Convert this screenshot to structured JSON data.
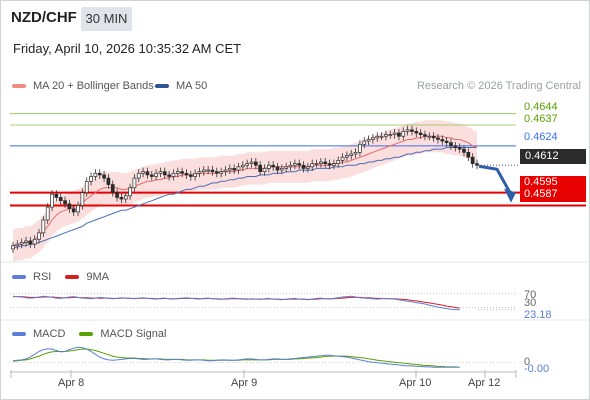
{
  "header": {
    "symbol": "NZD/CHF",
    "timeframe": "30 MIN",
    "datetime": "Friday, April 10, 2026 10:35:32 AM CET"
  },
  "legend": {
    "ma20": "MA 20 + Bollinger Bands",
    "ma50": "MA 50",
    "credit": "Research © 2026 Trading Central"
  },
  "levels": {
    "r2": "0.4644",
    "r1": "0.4637",
    "pivot": "0.4624",
    "last": "0.4612",
    "s1": "0.4595",
    "s2": "0.4587"
  },
  "rsi": {
    "label": "RSI",
    "ma_label": "9MA",
    "level_70": "70",
    "level_30": "30",
    "value": "23.18"
  },
  "macd": {
    "label": "MACD",
    "signal_label": "MACD Signal",
    "zero": "0",
    "value": "-0.00"
  },
  "xaxis": {
    "labels": [
      "Apr 8",
      "Apr 9",
      "Apr 10",
      "Apr 12"
    ]
  },
  "colors": {
    "up": "#1e1e1e",
    "down": "#555555",
    "ma20": "#e86a6a",
    "ma50": "#4a6fb5",
    "bands": "#f9d2d2",
    "resistance": "#7cb342",
    "pivot": "#3a6ee8",
    "support": "#e60000",
    "rsi": "#5b7fd6",
    "rsi_ma": "#d22020",
    "macd": "#5b7fd6",
    "macd_signal": "#5aa000"
  },
  "chart_data": {
    "type": "candlestick",
    "price_range": [
      0.4555,
      0.4655
    ],
    "rsi_range": [
      0,
      100
    ],
    "closes": [
      0.4562,
      0.4563,
      0.4564,
      0.4565,
      0.4563,
      0.4566,
      0.457,
      0.4578,
      0.4586,
      0.4594,
      0.4592,
      0.459,
      0.4588,
      0.4585,
      0.4583,
      0.4587,
      0.4595,
      0.4602,
      0.4605,
      0.4607,
      0.4606,
      0.4604,
      0.46,
      0.4595,
      0.4592,
      0.4591,
      0.4593,
      0.4598,
      0.4604,
      0.4607,
      0.4608,
      0.4606,
      0.4605,
      0.4607,
      0.4608,
      0.4606,
      0.4605,
      0.4607,
      0.4608,
      0.4607,
      0.4606,
      0.4605,
      0.4607,
      0.4608,
      0.4609,
      0.4609,
      0.4608,
      0.4607,
      0.4608,
      0.4609,
      0.461,
      0.4609,
      0.4611,
      0.4612,
      0.4613,
      0.4614,
      0.4612,
      0.4608,
      0.461,
      0.4612,
      0.4611,
      0.4609,
      0.461,
      0.4611,
      0.4612,
      0.4613,
      0.4612,
      0.461,
      0.4611,
      0.4613,
      0.4613,
      0.4614,
      0.4613,
      0.4612,
      0.4613,
      0.4615,
      0.4617,
      0.4618,
      0.4619,
      0.462,
      0.4625,
      0.4627,
      0.4628,
      0.4629,
      0.463,
      0.463,
      0.4631,
      0.4631,
      0.4632,
      0.463,
      0.4633,
      0.4634,
      0.4633,
      0.4632,
      0.4631,
      0.463,
      0.463,
      0.4629,
      0.4628,
      0.4627,
      0.4626,
      0.4624,
      0.4623,
      0.4622,
      0.462,
      0.4617,
      0.4613,
      0.4612
    ],
    "ma20": [
      0.4562,
      0.4563,
      0.4563,
      0.4564,
      0.4564,
      0.4566,
      0.4568,
      0.4571,
      0.4574,
      0.4578,
      0.4581,
      0.4583,
      0.4584,
      0.4585,
      0.4586,
      0.4587,
      0.4589,
      0.4591,
      0.4593,
      0.4595,
      0.4597,
      0.4598,
      0.4598,
      0.4598,
      0.4598,
      0.4597,
      0.4597,
      0.4598,
      0.4599,
      0.46,
      0.4601,
      0.4602,
      0.4602,
      0.4603,
      0.4603,
      0.4604,
      0.4604,
      0.4605,
      0.4605,
      0.4606,
      0.4606,
      0.4606,
      0.4606,
      0.4607,
      0.4607,
      0.4607,
      0.4607,
      0.4607,
      0.4608,
      0.4608,
      0.4608,
      0.4608,
      0.4609,
      0.4609,
      0.461,
      0.461,
      0.461,
      0.461,
      0.461,
      0.4611,
      0.4611,
      0.4611,
      0.4611,
      0.4611,
      0.4611,
      0.4611,
      0.4611,
      0.4611,
      0.4611,
      0.4612,
      0.4612,
      0.4612,
      0.4612,
      0.4612,
      0.4613,
      0.4613,
      0.4614,
      0.4614,
      0.4615,
      0.4616,
      0.4617,
      0.4618,
      0.4619,
      0.462,
      0.4621,
      0.4622,
      0.4623,
      0.4624,
      0.4625,
      0.4626,
      0.4627,
      0.4628,
      0.4628,
      0.4629,
      0.4629,
      0.463,
      0.463,
      0.463,
      0.463,
      0.463,
      0.4629,
      0.4629,
      0.4628,
      0.4628,
      0.4627,
      0.4626,
      0.4624,
      0.4623
    ],
    "ma50": [
      0.4561,
      0.4561,
      0.4562,
      0.4562,
      0.4563,
      0.4563,
      0.4564,
      0.4565,
      0.4566,
      0.4567,
      0.4568,
      0.4569,
      0.457,
      0.4571,
      0.4572,
      0.4573,
      0.4574,
      0.4576,
      0.4577,
      0.4578,
      0.4579,
      0.458,
      0.4581,
      0.4582,
      0.4583,
      0.4584,
      0.4584,
      0.4585,
      0.4586,
      0.4587,
      0.4588,
      0.4589,
      0.459,
      0.4591,
      0.4592,
      0.4593,
      0.4594,
      0.4594,
      0.4595,
      0.4596,
      0.4597,
      0.4597,
      0.4598,
      0.4599,
      0.4599,
      0.46,
      0.4601,
      0.4601,
      0.4602,
      0.4602,
      0.4603,
      0.4603,
      0.4604,
      0.4604,
      0.4605,
      0.4605,
      0.4605,
      0.4606,
      0.4606,
      0.4606,
      0.4607,
      0.4607,
      0.4607,
      0.4608,
      0.4608,
      0.4608,
      0.4609,
      0.4609,
      0.4609,
      0.4609,
      0.461,
      0.461,
      0.461,
      0.461,
      0.4611,
      0.4611,
      0.4611,
      0.4612,
      0.4612,
      0.4612,
      0.4613,
      0.4613,
      0.4614,
      0.4614,
      0.4615,
      0.4615,
      0.4616,
      0.4616,
      0.4617,
      0.4617,
      0.4618,
      0.4619,
      0.4619,
      0.462,
      0.462,
      0.4621,
      0.4621,
      0.4622,
      0.4622,
      0.4622,
      0.4623,
      0.4623,
      0.4623,
      0.4623,
      0.4623,
      0.4623,
      0.4623,
      0.4623
    ],
    "band_width": 0.001,
    "forecast_target": 0.4595,
    "rsi_values": [
      62,
      61,
      60,
      58,
      57,
      58,
      60,
      62,
      61,
      59,
      57,
      56,
      58,
      60,
      61,
      59,
      57,
      56,
      55,
      57,
      59,
      58,
      56,
      55,
      56,
      58,
      57,
      56,
      55,
      57,
      58,
      56,
      55,
      54,
      56,
      57,
      55,
      54,
      56,
      57,
      58,
      56,
      55,
      54,
      56,
      57,
      55,
      54,
      53,
      55,
      56,
      57,
      55,
      54,
      53,
      55,
      54,
      53,
      55,
      56,
      54,
      53,
      52,
      54,
      55,
      56,
      54,
      53,
      52,
      54,
      56,
      57,
      55,
      54,
      56,
      58,
      60,
      61,
      62,
      60,
      58,
      57,
      56,
      55,
      54,
      55,
      56,
      55,
      54,
      52,
      50,
      48,
      46,
      44,
      42,
      40,
      37,
      34,
      31,
      29,
      27,
      25,
      24,
      23.18
    ],
    "rsi_ma_values": [
      61,
      61,
      61,
      60,
      59,
      59,
      59,
      60,
      60,
      60,
      59,
      58,
      58,
      58,
      59,
      59,
      58,
      58,
      57,
      57,
      57,
      57,
      57,
      56,
      56,
      57,
      57,
      56,
      56,
      56,
      57,
      56,
      56,
      55,
      55,
      56,
      55,
      55,
      55,
      56,
      56,
      56,
      56,
      55,
      55,
      56,
      55,
      55,
      54,
      54,
      55,
      55,
      55,
      55,
      54,
      54,
      54,
      54,
      54,
      55,
      54,
      54,
      53,
      53,
      54,
      54,
      54,
      54,
      53,
      53,
      54,
      55,
      55,
      55,
      55,
      56,
      57,
      58,
      59,
      59,
      59,
      58,
      58,
      57,
      56,
      56,
      55,
      55,
      55,
      54,
      53,
      52,
      50,
      49,
      47,
      45,
      43,
      41,
      39,
      37,
      34,
      32,
      30,
      28
    ],
    "macd_values": [
      4e-05,
      5e-05,
      6e-05,
      8e-05,
      0.00012,
      0.00018,
      0.00024,
      0.00028,
      0.0003,
      0.00029,
      0.00026,
      0.00023,
      0.00024,
      0.00028,
      0.00031,
      0.00033,
      0.00032,
      0.00029,
      0.00024,
      0.00018,
      0.00012,
      8e-05,
      6e-05,
      5e-05,
      6e-05,
      7e-05,
      8e-05,
      9e-05,
      9e-05,
      8e-05,
      7e-05,
      7e-05,
      8e-05,
      8e-05,
      7e-05,
      6e-05,
      6e-05,
      7e-05,
      7e-05,
      6e-05,
      5e-05,
      5e-05,
      6e-05,
      6e-05,
      5e-05,
      4e-05,
      4e-05,
      5e-05,
      6e-05,
      6e-05,
      5e-05,
      5e-05,
      6e-05,
      7e-05,
      8e-05,
      8e-05,
      7e-05,
      6e-05,
      6e-05,
      7e-05,
      8e-05,
      8e-05,
      7e-05,
      7e-05,
      8e-05,
      9e-05,
      0.0001,
      0.00011,
      0.00012,
      0.00013,
      0.00014,
      0.00015,
      0.00016,
      0.00016,
      0.00015,
      0.00014,
      0.00013,
      0.00012,
      0.0001,
      8e-05,
      6e-05,
      4e-05,
      2e-05,
      1e-05,
      0.0,
      -1e-05,
      -2e-05,
      -3e-05,
      -4e-05,
      -5e-05,
      -6e-05,
      -7e-05,
      -7e-05,
      -8e-05,
      -8e-05,
      -9e-05,
      -9e-05,
      -0.0001,
      -0.0001,
      -0.0001,
      -0.0001,
      -0.0001,
      -0.0001,
      -0.0001
    ],
    "macd_signal_values": [
      3e-05,
      4e-05,
      5e-05,
      6e-05,
      8e-05,
      0.00011,
      0.00014,
      0.00018,
      0.00021,
      0.00023,
      0.00024,
      0.00024,
      0.00024,
      0.00025,
      0.00026,
      0.00028,
      0.00029,
      0.00029,
      0.00028,
      0.00026,
      0.00023,
      0.0002,
      0.00017,
      0.00014,
      0.00012,
      0.00011,
      0.0001,
      0.0001,
      0.0001,
      9e-05,
      9e-05,
      8e-05,
      8e-05,
      8e-05,
      8e-05,
      7e-05,
      7e-05,
      7e-05,
      7e-05,
      7e-05,
      6e-05,
      6e-05,
      6e-05,
      6e-05,
      6e-05,
      5e-05,
      5e-05,
      5e-05,
      5e-05,
      5e-05,
      5e-05,
      5e-05,
      5e-05,
      6e-05,
      6e-05,
      6e-05,
      6e-05,
      6e-05,
      6e-05,
      6e-05,
      7e-05,
      7e-05,
      7e-05,
      7e-05,
      7e-05,
      8e-05,
      8e-05,
      9e-05,
      0.0001,
      0.0001,
      0.00011,
      0.00012,
      0.00013,
      0.00014,
      0.00014,
      0.00014,
      0.00014,
      0.00014,
      0.00013,
      0.00012,
      0.00011,
      0.0001,
      8e-05,
      7e-05,
      5e-05,
      4e-05,
      3e-05,
      2e-05,
      1e-05,
      0.0,
      -1e-05,
      -2e-05,
      -3e-05,
      -4e-05,
      -5e-05,
      -6e-05,
      -6e-05,
      -7e-05,
      -8e-05,
      -8e-05,
      -9e-05,
      -9e-05,
      -9e-05,
      -0.0001
    ]
  }
}
